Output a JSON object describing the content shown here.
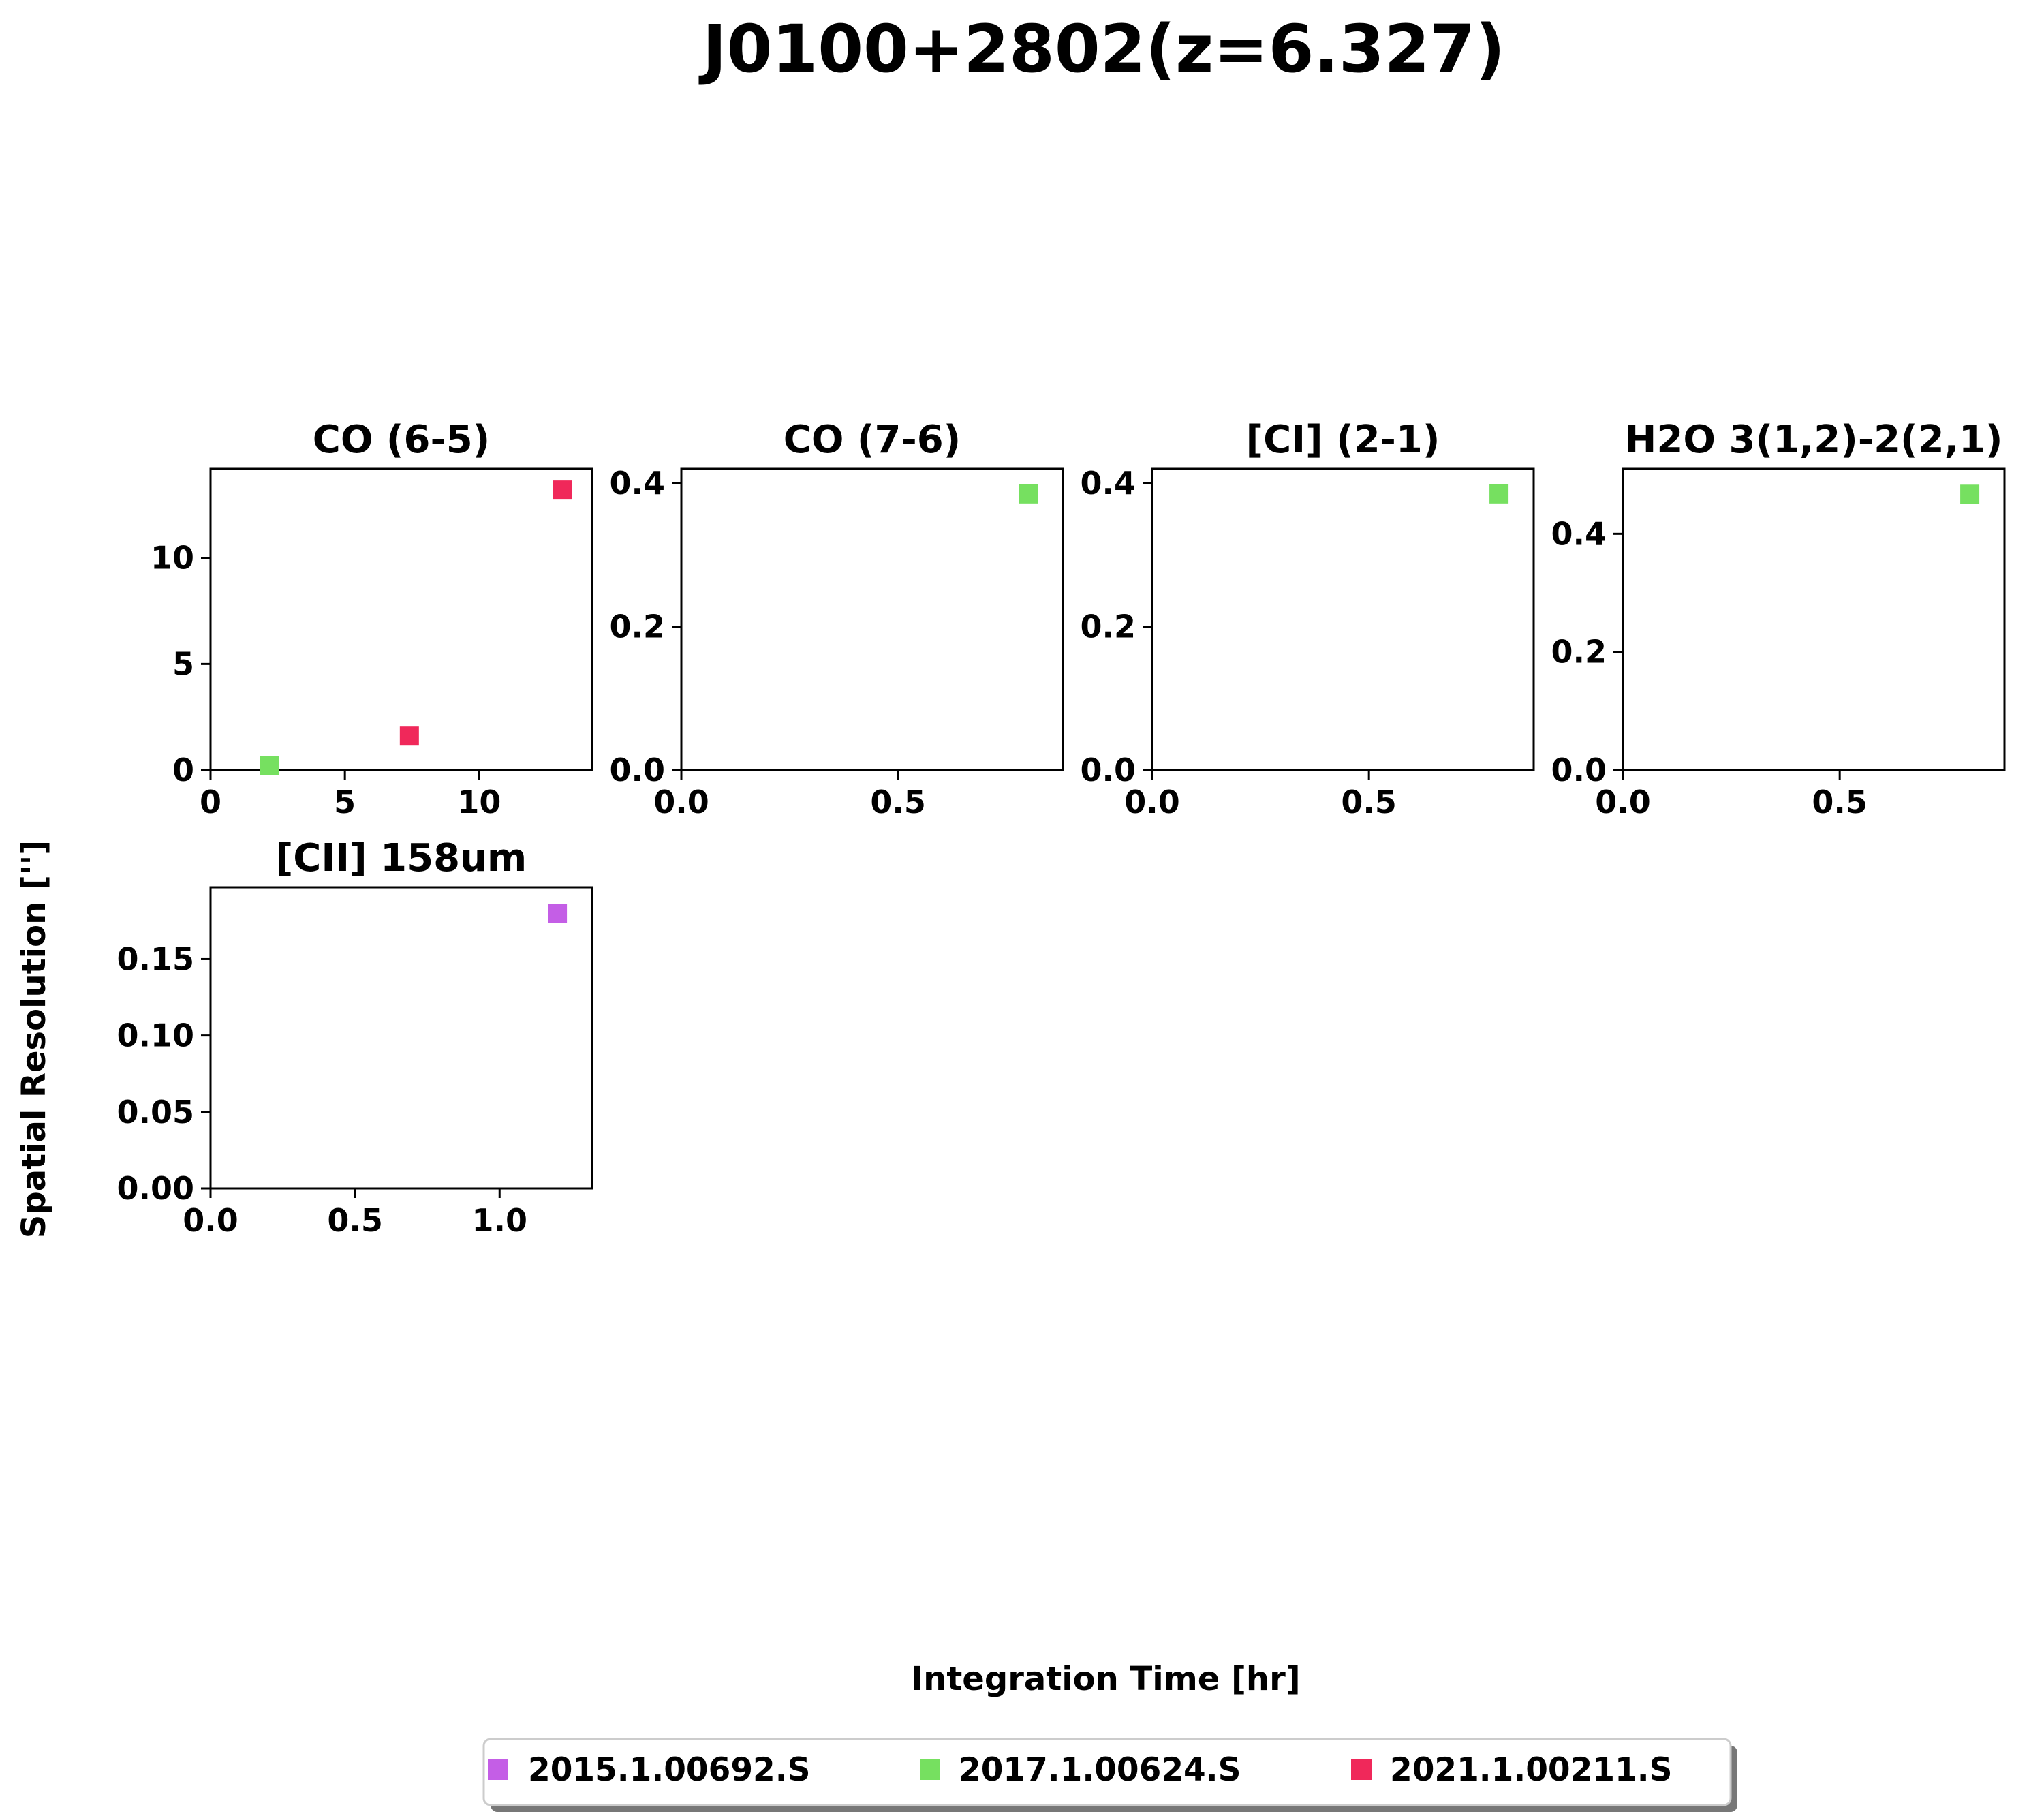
{
  "figure": {
    "title": "J0100+2802(z=6.327)",
    "xlabel": "Integration Time [hr]",
    "ylabel": "Spatial Resolution ['']"
  },
  "legend": {
    "placement": "bottom-center",
    "entries": [
      {
        "label": "2015.1.00692.S",
        "color": "#c45ee6"
      },
      {
        "label": "2017.1.00624.S",
        "color": "#76e060"
      },
      {
        "label": "2021.1.00211.S",
        "color": "#f0285a"
      }
    ]
  },
  "chart_data": [
    {
      "type": "scatter",
      "title": "CO (6-5)",
      "xlim": [
        0,
        14.2
      ],
      "ylim": [
        0,
        14.2
      ],
      "xticks": [
        0,
        5,
        10
      ],
      "xtick_labels": [
        "0",
        "5",
        "10"
      ],
      "yticks": [
        0,
        5,
        10
      ],
      "ytick_labels": [
        "0",
        "5",
        "10"
      ],
      "points": [
        {
          "x": 2.2,
          "y": 0.2,
          "series": "2017.1.00624.S"
        },
        {
          "x": 7.4,
          "y": 1.6,
          "series": "2021.1.00211.S"
        },
        {
          "x": 13.1,
          "y": 13.2,
          "series": "2021.1.00211.S"
        }
      ]
    },
    {
      "type": "scatter",
      "title": "CO (7-6)",
      "xlim": [
        0,
        0.88
      ],
      "ylim": [
        0,
        0.42
      ],
      "xticks": [
        0,
        0.5
      ],
      "xtick_labels": [
        "0.0",
        "0.5"
      ],
      "yticks": [
        0,
        0.2,
        0.4
      ],
      "ytick_labels": [
        "0.0",
        "0.2",
        "0.4"
      ],
      "points": [
        {
          "x": 0.8,
          "y": 0.385,
          "series": "2017.1.00624.S"
        }
      ]
    },
    {
      "type": "scatter",
      "title": "[CI] (2-1)",
      "xlim": [
        0,
        0.88
      ],
      "ylim": [
        0,
        0.42
      ],
      "xticks": [
        0,
        0.5
      ],
      "xtick_labels": [
        "0.0",
        "0.5"
      ],
      "yticks": [
        0,
        0.2,
        0.4
      ],
      "ytick_labels": [
        "0.0",
        "0.2",
        "0.4"
      ],
      "points": [
        {
          "x": 0.8,
          "y": 0.385,
          "series": "2017.1.00624.S"
        }
      ]
    },
    {
      "type": "scatter",
      "title": "H2O 3(1,2)-2(2,1)",
      "xlim": [
        0,
        0.88
      ],
      "ylim": [
        0,
        0.51
      ],
      "xticks": [
        0,
        0.5
      ],
      "xtick_labels": [
        "0.0",
        "0.5"
      ],
      "yticks": [
        0,
        0.2,
        0.4
      ],
      "ytick_labels": [
        "0.0",
        "0.2",
        "0.4"
      ],
      "points": [
        {
          "x": 0.8,
          "y": 0.467,
          "series": "2017.1.00624.S"
        }
      ]
    },
    {
      "type": "scatter",
      "title": "[CII] 158um",
      "xlim": [
        0,
        1.32
      ],
      "ylim": [
        0,
        0.197
      ],
      "xticks": [
        0,
        0.5,
        1.0
      ],
      "xtick_labels": [
        "0.0",
        "0.5",
        "1.0"
      ],
      "yticks": [
        0,
        0.05,
        0.1,
        0.15
      ],
      "ytick_labels": [
        "0.00",
        "0.05",
        "0.10",
        "0.15"
      ],
      "points": [
        {
          "x": 1.2,
          "y": 0.18,
          "series": "2015.1.00692.S"
        }
      ]
    }
  ]
}
